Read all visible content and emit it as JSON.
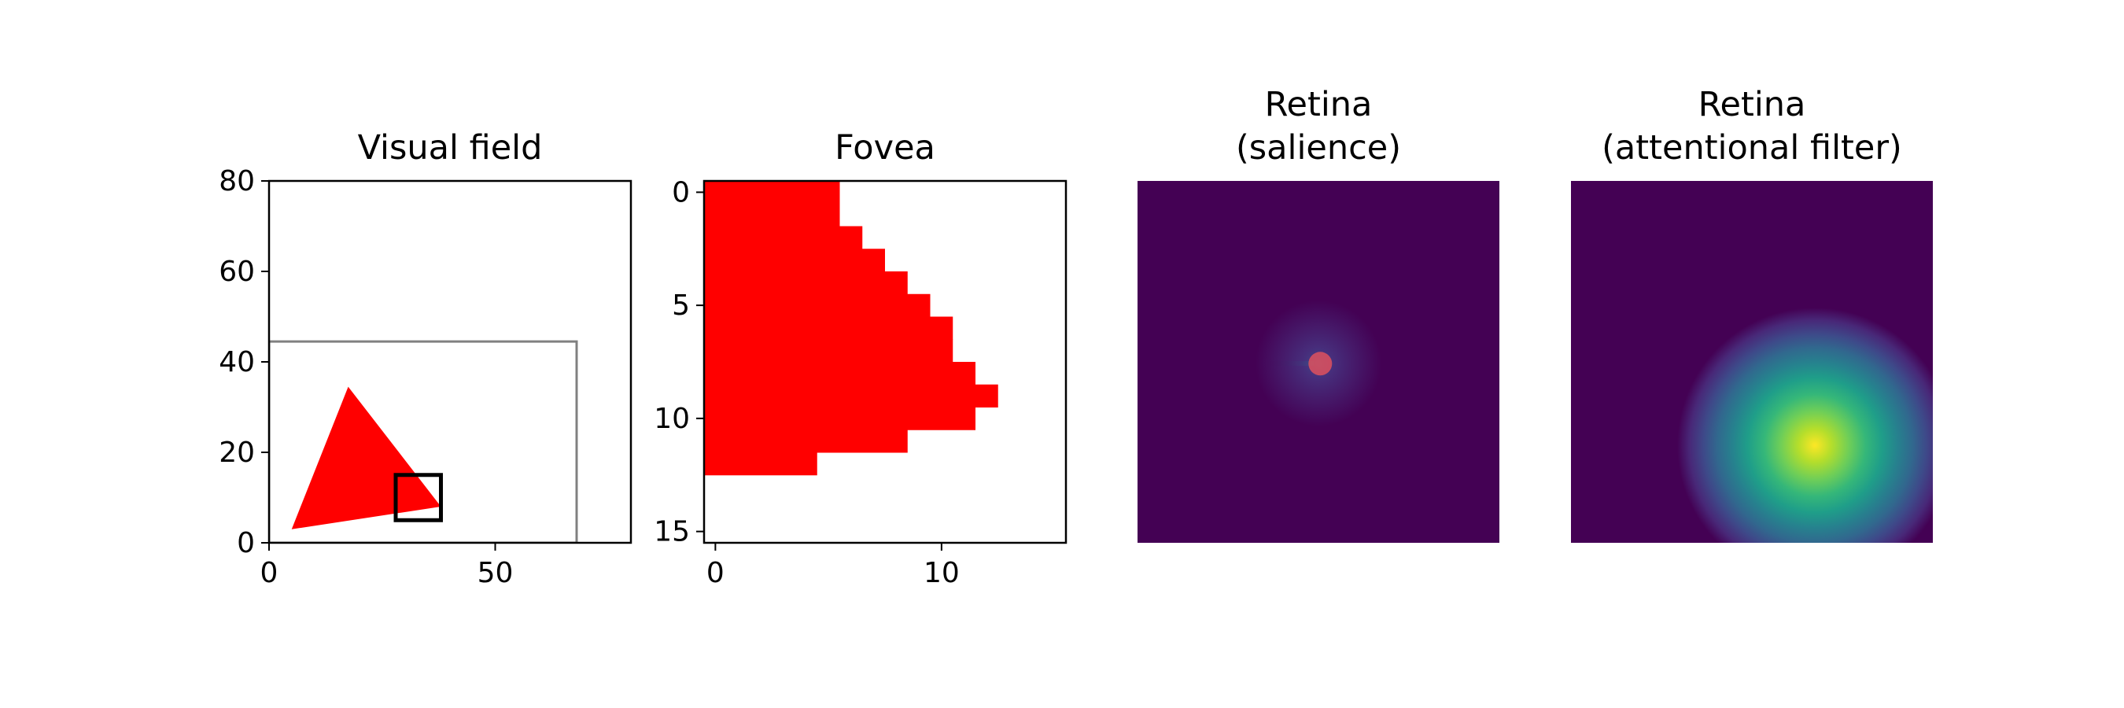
{
  "chart_data": [
    {
      "type": "scatter",
      "title": "Visual field",
      "xlim": [
        0,
        80
      ],
      "ylim": [
        0,
        80
      ],
      "xticks": [
        0,
        50
      ],
      "yticks": [
        0,
        20,
        40,
        60,
        80
      ],
      "shapes": [
        {
          "kind": "polygon",
          "name": "red-triangle",
          "color": "#ff0000",
          "points": [
            [
              5,
              3
            ],
            [
              17.5,
              34.5
            ],
            [
              38,
              8
            ]
          ]
        },
        {
          "kind": "rect",
          "name": "field-boundary",
          "color": "#808080",
          "x": [
            0,
            68
          ],
          "y": [
            0,
            44.5
          ]
        },
        {
          "kind": "rect",
          "name": "fovea-window",
          "color": "#000000",
          "x": [
            28,
            38
          ],
          "y": [
            5,
            15
          ]
        }
      ]
    },
    {
      "type": "heatmap",
      "title": "Fovea",
      "xlim": [
        -0.5,
        15.5
      ],
      "ylim": [
        15.5,
        -0.5
      ],
      "xticks": [
        0,
        10
      ],
      "yticks": [
        0,
        5,
        10,
        15
      ],
      "fill_color": "#ff0000",
      "row_fill_extents": [
        5,
        5,
        6,
        7,
        8,
        9,
        10,
        10,
        11,
        12,
        11,
        8,
        4,
        0,
        0,
        0
      ]
    },
    {
      "type": "heatmap",
      "title": "Retina\n(salience)",
      "colormap": "viridis",
      "background_value": 0,
      "peak": {
        "x": 0.505,
        "y": 0.505,
        "value": 1,
        "sigma": 0.008
      },
      "marker": {
        "x": 0.505,
        "y": 0.505,
        "color": "#e8525b",
        "opacity": 0.8
      }
    },
    {
      "type": "heatmap",
      "title": "Retina\n(attentional filter)",
      "colormap": "viridis",
      "background_value": 0,
      "peak": {
        "x": 0.68,
        "y": 0.73,
        "value": 1,
        "sigma": 0.11
      }
    }
  ]
}
